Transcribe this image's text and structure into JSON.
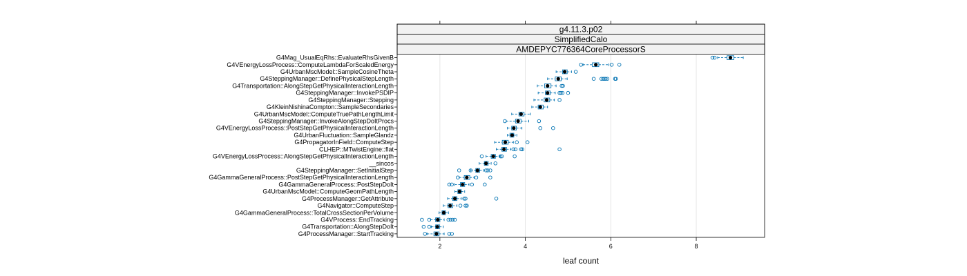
{
  "chart_data": {
    "type": "boxplot",
    "strips": [
      "g4.11.3.p02",
      "SimplifiedCalo",
      "AMDEPYC776364CoreProcessorS"
    ],
    "xlabel": "leaf count",
    "ylabel": "",
    "xlim": [
      1.0,
      9.6
    ],
    "xticks": [
      2,
      4,
      6,
      8
    ],
    "grid": "vertical",
    "categories": [
      "G4Mag_UsualEqRhs::EvaluateRhsGivenB",
      "G4VEnergyLossProcess::ComputeLambdaForScaledEnergy",
      "G4UrbanMscModel::SampleCosineTheta",
      "G4SteppingManager::DefinePhysicalStepLength",
      "G4Transportation::AlongStepGetPhysicalInteractionLength",
      "G4SteppingManager::InvokePSDIP",
      "G4SteppingManager::Stepping",
      "G4KleinNishinaCompton::SampleSecondaries",
      "G4UrbanMscModel::ComputeTruePathLengthLimit",
      "G4SteppingManager::InvokeAlongStepDoItProcs",
      "G4VEnergyLossProcess::PostStepGetPhysicalInteractionLength",
      "G4UrbanFluctuation::SampleGlandz",
      "G4PropagatorInField::ComputeStep",
      "CLHEP::MTwistEngine::flat",
      "G4VEnergyLossProcess::AlongStepGetPhysicalInteractionLength",
      "__sincos",
      "G4SteppingManager::SetInitialStep",
      "G4GammaGeneralProcess::PostStepGetPhysicalInteractionLength",
      "G4GammaGeneralProcess::PostStepDoIt",
      "G4UrbanMscModel::ComputeGeomPathLength",
      "G4ProcessManager::GetAttribute",
      "G4Navigator::ComputeStep",
      "G4GammaGeneralProcess::TotalCrossSectionPerVolume",
      "G4VProcess::EndTracking",
      "G4Transportation::AlongStepDoIt",
      "G4ProcessManager::StartTracking"
    ],
    "boxes": [
      {
        "wlo": 8.5,
        "q1": 8.72,
        "med": 8.8,
        "q3": 8.88,
        "whi": 9.1,
        "out": [
          8.38,
          8.43
        ]
      },
      {
        "wlo": 5.35,
        "q1": 5.57,
        "med": 5.65,
        "q3": 5.72,
        "whi": 5.95,
        "out": [
          5.3,
          6.02,
          6.2
        ]
      },
      {
        "wlo": 4.72,
        "q1": 4.87,
        "med": 4.92,
        "q3": 4.98,
        "whi": 5.08,
        "out": [
          5.18
        ]
      },
      {
        "wlo": 4.52,
        "q1": 4.7,
        "med": 4.77,
        "q3": 4.84,
        "whi": 4.98,
        "out": [
          5.6,
          5.78,
          5.82,
          5.85,
          5.88,
          5.92,
          6.1,
          6.12
        ]
      },
      {
        "wlo": 4.28,
        "q1": 4.45,
        "med": 4.52,
        "q3": 4.6,
        "whi": 4.72,
        "out": [
          4.85,
          4.88
        ]
      },
      {
        "wlo": 4.3,
        "q1": 4.47,
        "med": 4.52,
        "q3": 4.58,
        "whi": 4.7,
        "out": [
          4.8,
          4.83,
          4.87,
          5.0
        ]
      },
      {
        "wlo": 4.2,
        "q1": 4.44,
        "med": 4.5,
        "q3": 4.57,
        "whi": 4.68,
        "out": [
          4.8
        ]
      },
      {
        "wlo": 4.15,
        "q1": 4.3,
        "med": 4.35,
        "q3": 4.42,
        "whi": 4.52,
        "out": []
      },
      {
        "wlo": 3.68,
        "q1": 3.85,
        "med": 3.9,
        "q3": 3.97,
        "whi": 4.12,
        "out": []
      },
      {
        "wlo": 3.55,
        "q1": 3.77,
        "med": 3.83,
        "q3": 3.9,
        "whi": 4.08,
        "out": [
          3.52,
          4.32
        ]
      },
      {
        "wlo": 3.58,
        "q1": 3.68,
        "med": 3.73,
        "q3": 3.79,
        "whi": 3.92,
        "out": [
          4.35,
          4.65
        ]
      },
      {
        "wlo": 3.58,
        "q1": 3.64,
        "med": 3.69,
        "q3": 3.73,
        "whi": 3.8,
        "out": []
      },
      {
        "wlo": 3.28,
        "q1": 3.46,
        "med": 3.53,
        "q3": 3.6,
        "whi": 3.72,
        "out": [
          3.8,
          4.05
        ]
      },
      {
        "wlo": 3.32,
        "q1": 3.45,
        "med": 3.5,
        "q3": 3.56,
        "whi": 3.66,
        "out": [
          3.72,
          3.77,
          3.9,
          3.93,
          4.8
        ]
      },
      {
        "wlo": 3.08,
        "q1": 3.2,
        "med": 3.25,
        "q3": 3.3,
        "whi": 3.4,
        "out": [
          2.98,
          3.42,
          3.45,
          3.75
        ]
      },
      {
        "wlo": 2.92,
        "q1": 3.04,
        "med": 3.08,
        "q3": 3.13,
        "whi": 3.2,
        "out": [
          3.3
        ]
      },
      {
        "wlo": 2.72,
        "q1": 2.84,
        "med": 2.88,
        "q3": 2.93,
        "whi": 3.02,
        "out": [
          2.45,
          2.72,
          3.08,
          3.12,
          3.18
        ]
      },
      {
        "wlo": 2.45,
        "q1": 2.57,
        "med": 2.63,
        "q3": 2.7,
        "whi": 2.8,
        "out": [
          2.42,
          2.85,
          3.18
        ]
      },
      {
        "wlo": 2.35,
        "q1": 2.48,
        "med": 2.53,
        "q3": 2.58,
        "whi": 2.68,
        "out": [
          2.22,
          2.28,
          2.75,
          3.05
        ]
      },
      {
        "wlo": 2.35,
        "q1": 2.42,
        "med": 2.46,
        "q3": 2.5,
        "whi": 2.58,
        "out": []
      },
      {
        "wlo": 2.18,
        "q1": 2.3,
        "med": 2.35,
        "q3": 2.4,
        "whi": 2.5,
        "out": [
          2.57,
          2.6,
          3.32
        ]
      },
      {
        "wlo": 2.08,
        "q1": 2.19,
        "med": 2.24,
        "q3": 2.3,
        "whi": 2.4,
        "out": [
          2.48,
          2.6,
          2.63
        ]
      },
      {
        "wlo": 1.98,
        "q1": 2.05,
        "med": 2.09,
        "q3": 2.13,
        "whi": 2.2,
        "out": []
      },
      {
        "wlo": 1.78,
        "q1": 1.9,
        "med": 1.95,
        "q3": 2.0,
        "whi": 2.1,
        "out": [
          1.58,
          1.75,
          2.2,
          2.25,
          2.3,
          2.35
        ]
      },
      {
        "wlo": 1.8,
        "q1": 1.9,
        "med": 1.94,
        "q3": 1.99,
        "whi": 2.08,
        "out": [
          1.62,
          1.75
        ]
      },
      {
        "wlo": 1.7,
        "q1": 1.86,
        "med": 1.92,
        "q3": 1.98,
        "whi": 2.1,
        "out": [
          1.65,
          2.22,
          2.28
        ]
      }
    ],
    "colors": {
      "box": "#0072b2",
      "median": "#000000",
      "grid": "#e6e6e6",
      "strip": "#f2f2f2",
      "frame": "#000000"
    }
  }
}
